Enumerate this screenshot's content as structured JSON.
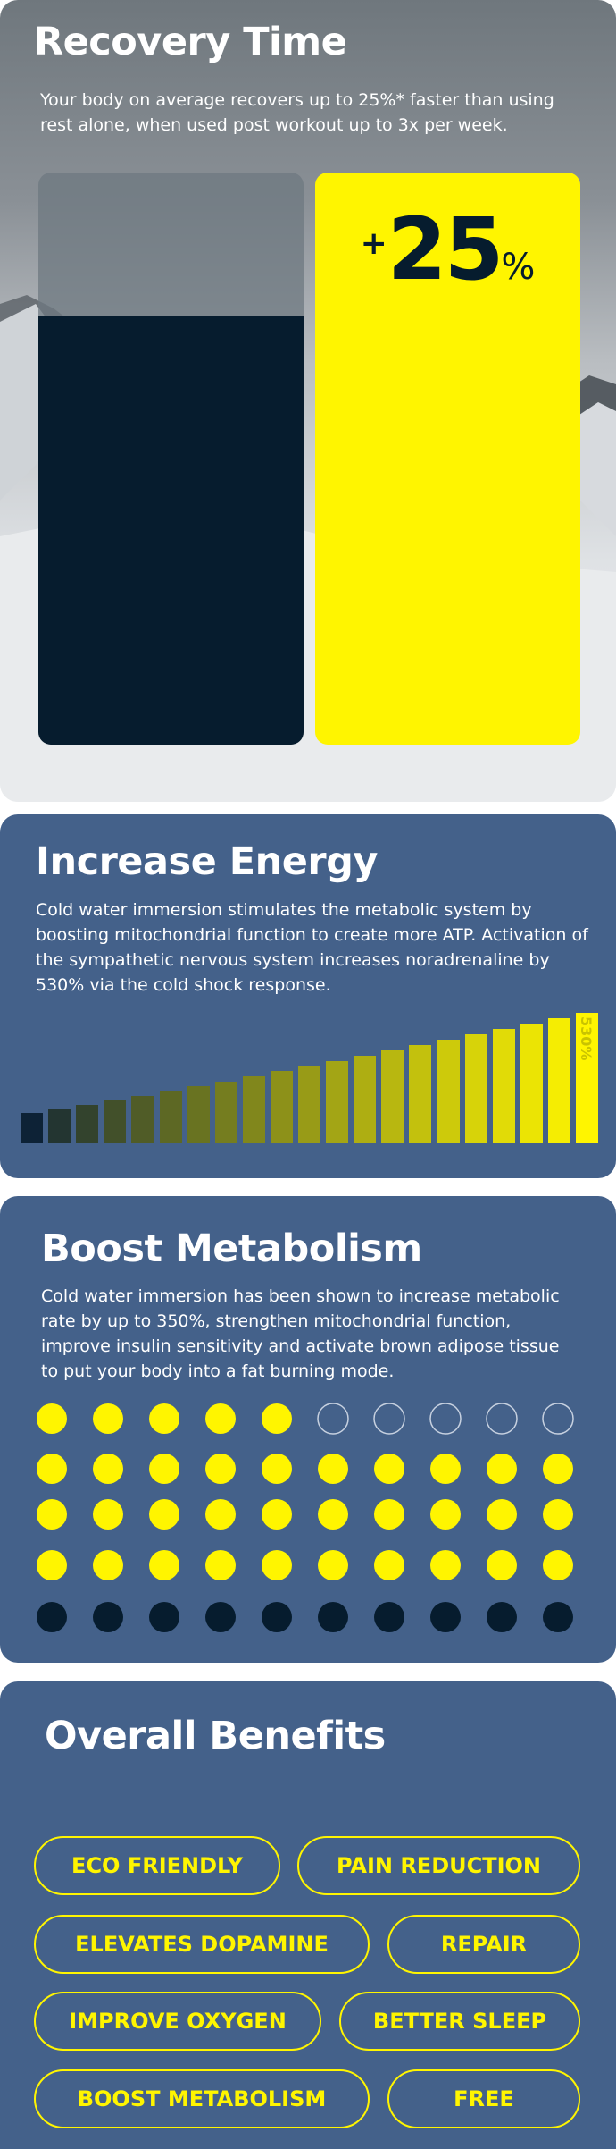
{
  "recovery": {
    "title": "Recovery Time",
    "text": "Your body on average recovers up to 25%* faster than using rest alone, when used post workout up to 3x per week.",
    "stat_prefix": "+",
    "stat_number": "25",
    "stat_suffix": "%"
  },
  "energy": {
    "title": "Increase Energy",
    "text": "Cold water immersion stimulates the metabolic system by boosting mitochondrial function to create more ATP. Activation of the sympathetic nervous system increases noradrenaline by 530% via the cold shock response.",
    "bar_label": "530%"
  },
  "metabolism": {
    "title": "Boost Metabolism",
    "text": "Cold water immersion has been shown to increase metabolic rate by up to 350%, strengthen mitochondrial function, improve insulin sensitivity and activate brown adipose tissue to put your body into a fat burning mode."
  },
  "benefits": {
    "title": "Overall Benefits",
    "items": [
      "ECO FRIENDLY",
      "PAIN REDUCTION",
      "ELEVATES DOPAMINE",
      "REPAIR",
      "IMPROVE OXYGEN",
      "BETTER SLEEP",
      "BOOST METABOLISM",
      "FREE"
    ]
  }
}
